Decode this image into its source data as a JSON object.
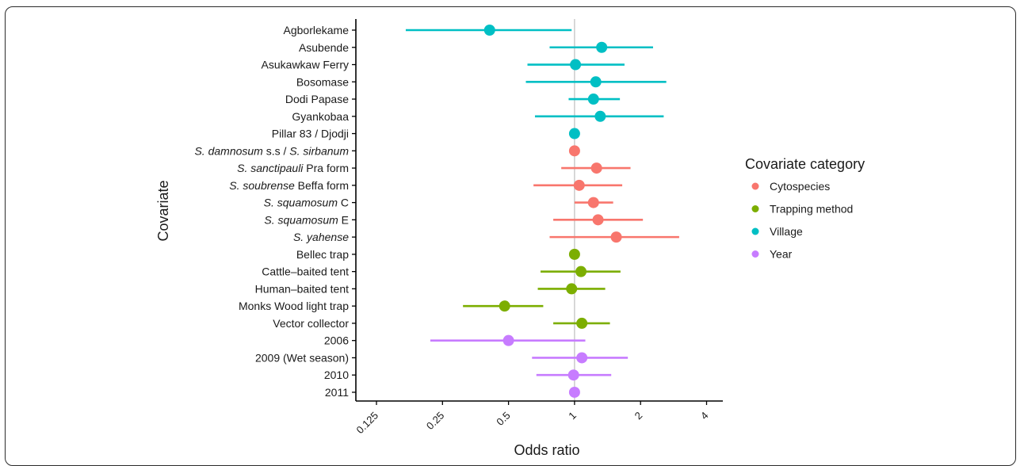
{
  "chart_data": {
    "type": "scatter",
    "xlabel": "Odds ratio",
    "ylabel": "Covariate",
    "x_scale": "log2",
    "xlim": [
      0.11,
      4.9
    ],
    "x_ticks": [
      {
        "value": 0.125,
        "label": "0.125"
      },
      {
        "value": 0.25,
        "label": "0.25"
      },
      {
        "value": 0.5,
        "label": "0.5"
      },
      {
        "value": 1,
        "label": "1"
      },
      {
        "value": 2,
        "label": "2"
      },
      {
        "value": 4,
        "label": "4"
      }
    ],
    "reference_line": 1,
    "grid": false,
    "legend": {
      "title": "Covariate category",
      "position": "right",
      "items": [
        {
          "key": "Cytospecies",
          "label": "Cytospecies",
          "color": "#F8766D"
        },
        {
          "key": "Trapping method",
          "label": "Trapping method",
          "color": "#7CAE00"
        },
        {
          "key": "Village",
          "label": "Village",
          "color": "#00BFC4"
        },
        {
          "key": "Year",
          "label": "Year",
          "color": "#C77CFF"
        }
      ]
    },
    "rows": [
      {
        "parts": [
          {
            "text": "Agborlekame",
            "italic": false
          }
        ],
        "category": "Village",
        "or": 0.41,
        "lo": 0.17,
        "hi": 0.97
      },
      {
        "parts": [
          {
            "text": "Asubende",
            "italic": false
          }
        ],
        "category": "Village",
        "or": 1.33,
        "lo": 0.77,
        "hi": 2.28
      },
      {
        "parts": [
          {
            "text": "Asukawkaw Ferry",
            "italic": false
          }
        ],
        "category": "Village",
        "or": 1.01,
        "lo": 0.61,
        "hi": 1.69
      },
      {
        "parts": [
          {
            "text": "Bosomase",
            "italic": false
          }
        ],
        "category": "Village",
        "or": 1.25,
        "lo": 0.6,
        "hi": 2.62
      },
      {
        "parts": [
          {
            "text": "Dodi Papase",
            "italic": false
          }
        ],
        "category": "Village",
        "or": 1.22,
        "lo": 0.94,
        "hi": 1.61
      },
      {
        "parts": [
          {
            "text": "Gyankobaa",
            "italic": false
          }
        ],
        "category": "Village",
        "or": 1.31,
        "lo": 0.66,
        "hi": 2.55
      },
      {
        "parts": [
          {
            "text": "Pillar 83 / Djodji",
            "italic": false
          }
        ],
        "category": "Village",
        "or": 1.0,
        "lo": 1.0,
        "hi": 1.0
      },
      {
        "parts": [
          {
            "text": "S. damnosum",
            "italic": true
          },
          {
            "text": " s.s / ",
            "italic": false
          },
          {
            "text": "S. sirbanum",
            "italic": true
          }
        ],
        "category": "Cytospecies",
        "or": 1.0,
        "lo": 1.0,
        "hi": 1.0
      },
      {
        "parts": [
          {
            "text": "S. sanctipauli",
            "italic": true
          },
          {
            "text": " Pra form",
            "italic": false
          }
        ],
        "category": "Cytospecies",
        "or": 1.26,
        "lo": 0.87,
        "hi": 1.8
      },
      {
        "parts": [
          {
            "text": "S. soubrense",
            "italic": true
          },
          {
            "text": " Beffa form",
            "italic": false
          }
        ],
        "category": "Cytospecies",
        "or": 1.05,
        "lo": 0.65,
        "hi": 1.65
      },
      {
        "parts": [
          {
            "text": "S. squamosum",
            "italic": true
          },
          {
            "text": " C",
            "italic": false
          }
        ],
        "category": "Cytospecies",
        "or": 1.22,
        "lo": 1.0,
        "hi": 1.5
      },
      {
        "parts": [
          {
            "text": "S. squamosum",
            "italic": true
          },
          {
            "text": " E",
            "italic": false
          }
        ],
        "category": "Cytospecies",
        "or": 1.28,
        "lo": 0.8,
        "hi": 2.05
      },
      {
        "parts": [
          {
            "text": "S. yahense",
            "italic": true
          }
        ],
        "category": "Cytospecies",
        "or": 1.55,
        "lo": 0.77,
        "hi": 3.0
      },
      {
        "parts": [
          {
            "text": "Bellec trap",
            "italic": false
          }
        ],
        "category": "Trapping method",
        "or": 1.0,
        "lo": 1.0,
        "hi": 1.0
      },
      {
        "parts": [
          {
            "text": "Cattle",
            "italic": false
          },
          {
            "text": "–",
            "italic": false
          },
          {
            "text": "baited tent",
            "italic": false
          }
        ],
        "category": "Trapping method",
        "or": 1.07,
        "lo": 0.7,
        "hi": 1.62
      },
      {
        "parts": [
          {
            "text": "Human",
            "italic": false
          },
          {
            "text": "–",
            "italic": false
          },
          {
            "text": "baited tent",
            "italic": false
          }
        ],
        "category": "Trapping method",
        "or": 0.97,
        "lo": 0.68,
        "hi": 1.38
      },
      {
        "parts": [
          {
            "text": "Monks Wood light trap",
            "italic": false
          }
        ],
        "category": "Trapping method",
        "or": 0.48,
        "lo": 0.31,
        "hi": 0.72
      },
      {
        "parts": [
          {
            "text": "Vector collector",
            "italic": false
          }
        ],
        "category": "Trapping method",
        "or": 1.08,
        "lo": 0.8,
        "hi": 1.45
      },
      {
        "parts": [
          {
            "text": "2006",
            "italic": false
          }
        ],
        "category": "Year",
        "or": 0.5,
        "lo": 0.22,
        "hi": 1.12
      },
      {
        "parts": [
          {
            "text": "2009 (Wet season)",
            "italic": false
          }
        ],
        "category": "Year",
        "or": 1.08,
        "lo": 0.64,
        "hi": 1.75
      },
      {
        "parts": [
          {
            "text": "2010",
            "italic": false
          }
        ],
        "category": "Year",
        "or": 0.99,
        "lo": 0.67,
        "hi": 1.47
      },
      {
        "parts": [
          {
            "text": "2011",
            "italic": false
          }
        ],
        "category": "Year",
        "or": 1.0,
        "lo": 1.0,
        "hi": 1.0
      }
    ]
  }
}
